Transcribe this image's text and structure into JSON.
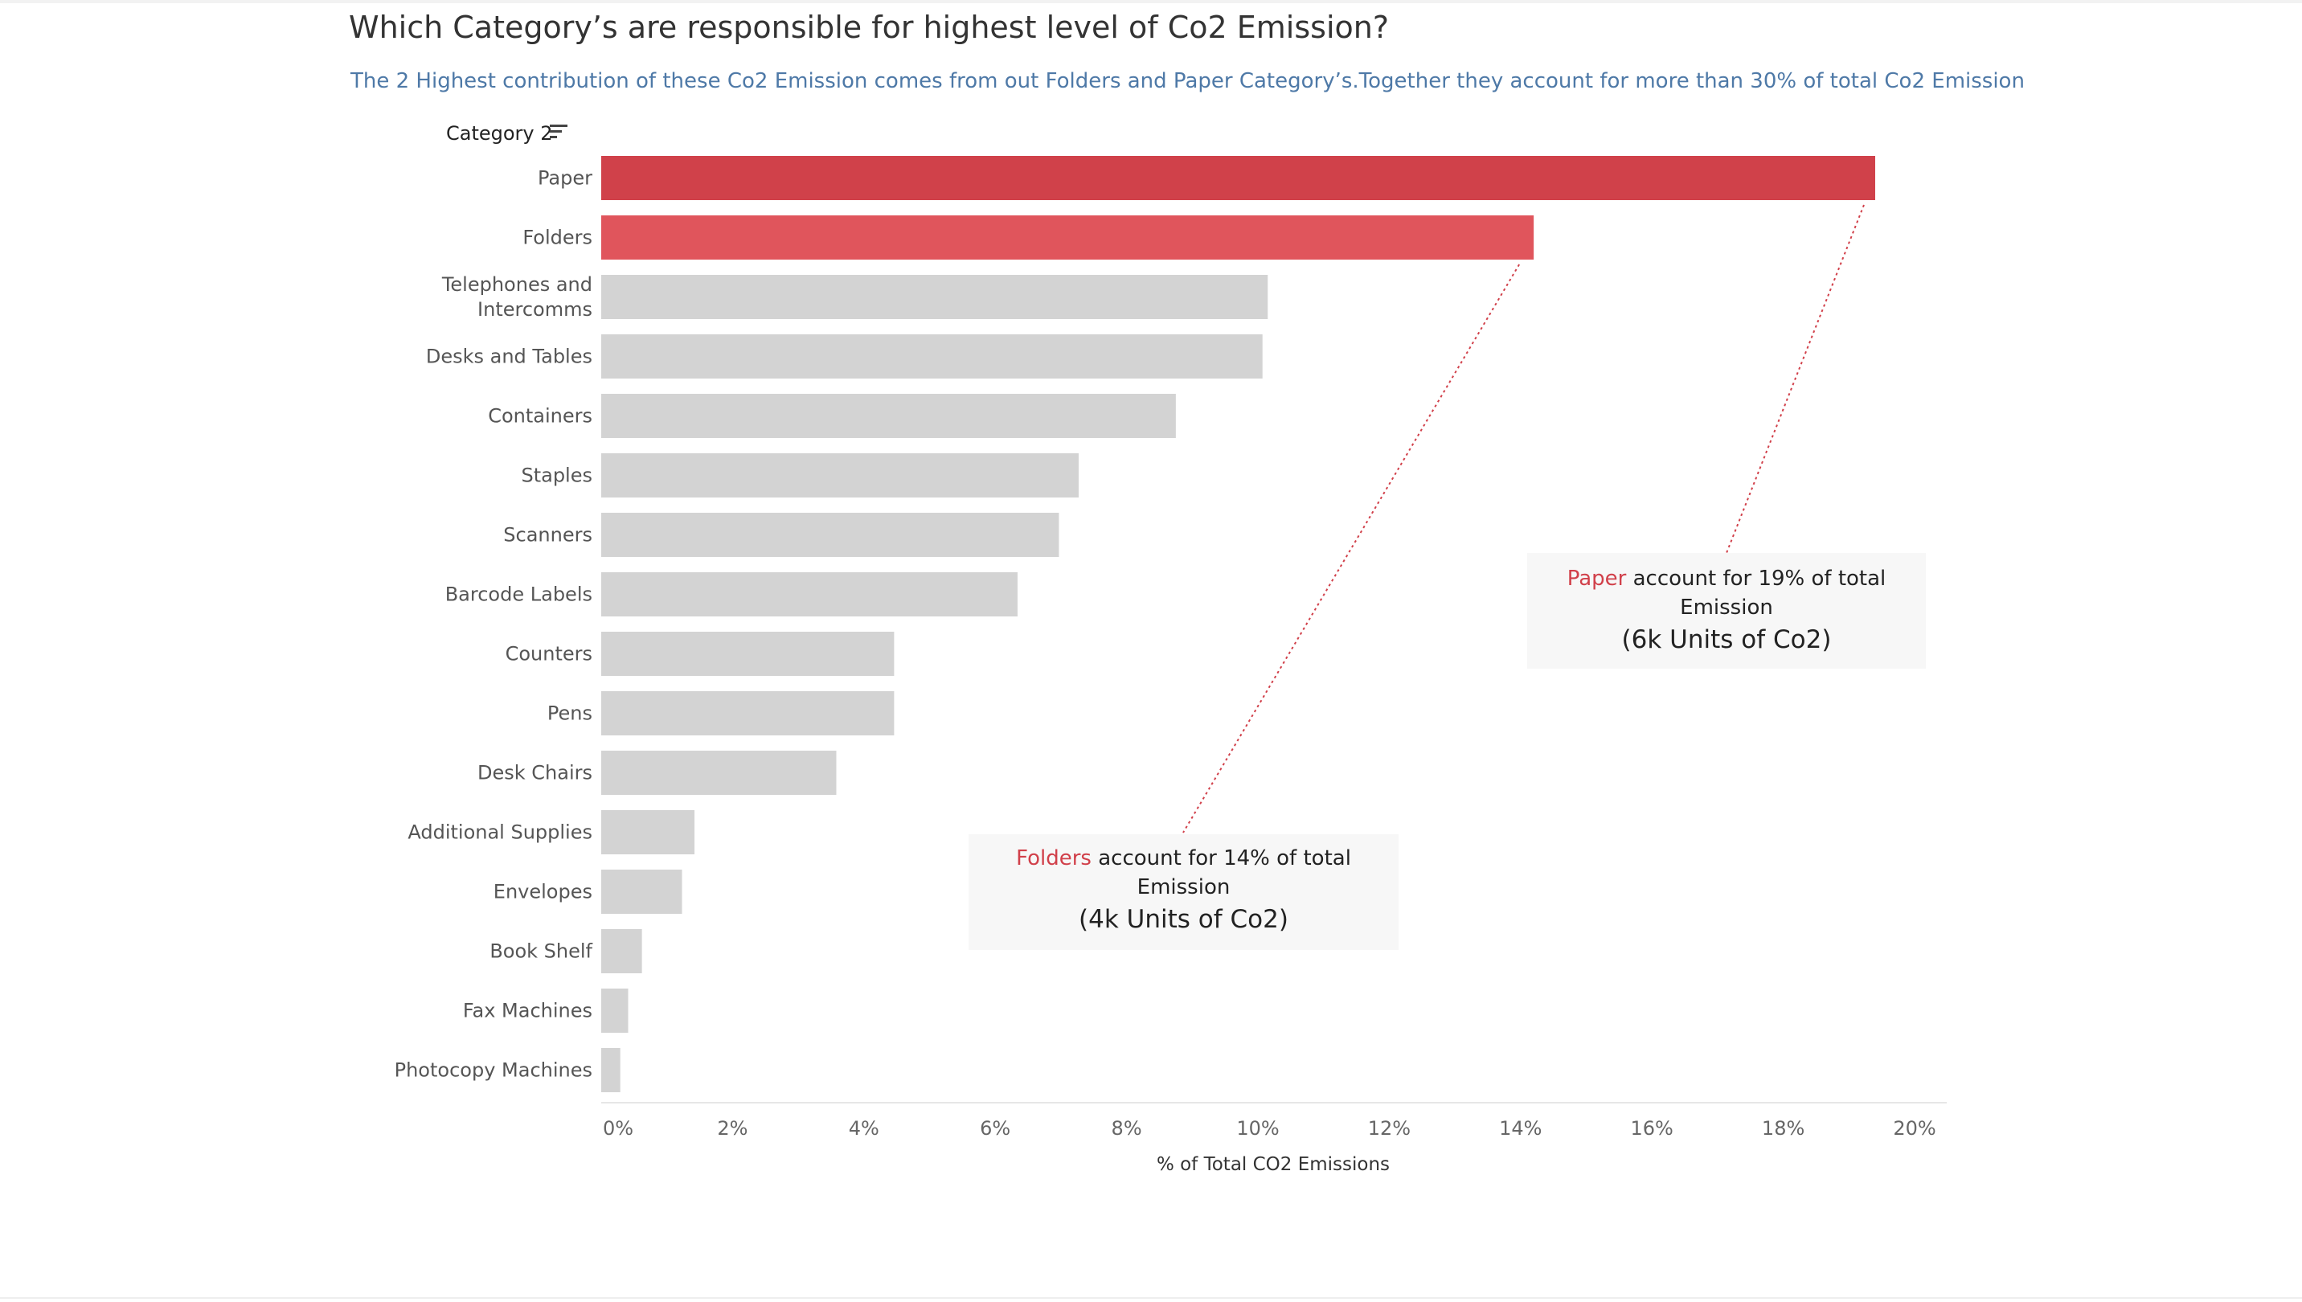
{
  "title": "Which Category’s are responsible for highest level of Co2 Emission?",
  "subtitle": "The 2 Highest contribution of these Co2 Emission comes from out Folders and Paper Category’s.Together they account for more than 30% of total Co2 Emission",
  "category_header": "Category 2",
  "colors": {
    "highlight_1": "#d0414a",
    "highlight_2": "#e0555c",
    "default_bar": "#d3d3d3",
    "leader_line": "#d1404a"
  },
  "annotations": {
    "paper": {
      "highlight": "Paper",
      "text": " account for 19% of total Emission",
      "units": "(6k Units of Co2)"
    },
    "folders": {
      "highlight": "Folders",
      "text": " account for 14% of total Emission",
      "units": "(4k Units of Co2)"
    }
  },
  "chart_data": {
    "type": "bar",
    "orientation": "horizontal",
    "title": "Which Category’s are responsible for highest level of Co2 Emission?",
    "xlabel": "% of Total CO2 Emissions",
    "ylabel": "Category 2",
    "xlim": [
      0,
      20
    ],
    "x_ticks": [
      "0%",
      "2%",
      "4%",
      "6%",
      "8%",
      "10%",
      "12%",
      "14%",
      "16%",
      "18%",
      "20%"
    ],
    "categories": [
      [
        "Paper"
      ],
      [
        "Folders"
      ],
      [
        "Telephones and",
        "Intercomms"
      ],
      [
        "Desks and Tables"
      ],
      [
        "Containers"
      ],
      [
        "Staples"
      ],
      [
        "Scanners"
      ],
      [
        "Barcode Labels"
      ],
      [
        "Counters"
      ],
      [
        "Pens"
      ],
      [
        "Desk Chairs"
      ],
      [
        "Additional Supplies"
      ],
      [
        "Envelopes"
      ],
      [
        "Book Shelf"
      ],
      [
        "Fax Machines"
      ],
      [
        "Photocopy Machines"
      ]
    ],
    "values": [
      19.4,
      14.2,
      10.15,
      10.07,
      8.75,
      7.27,
      6.97,
      6.34,
      4.46,
      4.46,
      3.58,
      1.42,
      1.23,
      0.62,
      0.41,
      0.29
    ],
    "highlighted": [
      0,
      1
    ],
    "grid": false,
    "legend": "none"
  }
}
